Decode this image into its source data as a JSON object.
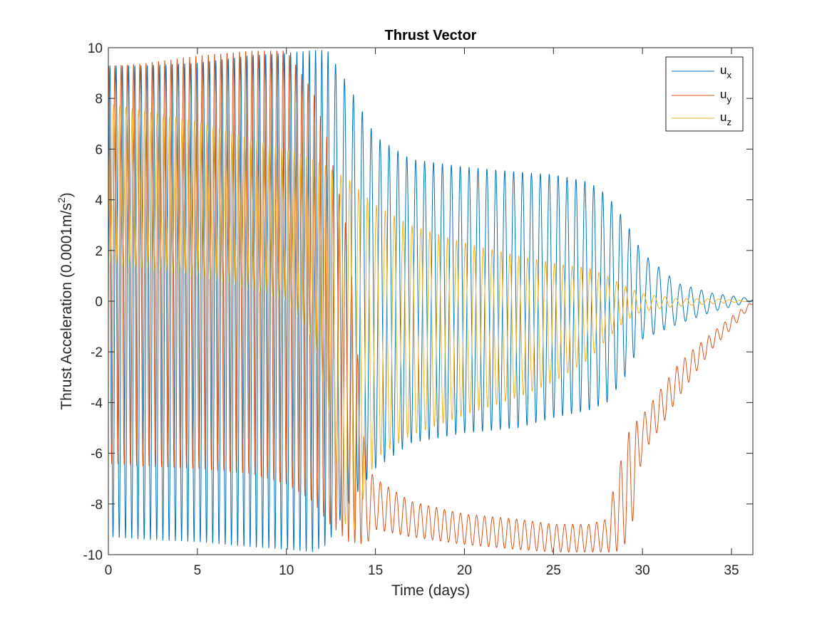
{
  "chart_data": {
    "type": "line",
    "title": "Thrust Vector",
    "xlabel": "Time (days)",
    "ylabel": "Thrust Acceleration (0.0001m/s",
    "ylabel_sup": "2",
    "ylabel_end": ")",
    "xlim": [
      0,
      36.2
    ],
    "ylim": [
      -10,
      10
    ],
    "xticks": [
      0,
      5,
      10,
      15,
      20,
      25,
      30,
      35
    ],
    "yticks": [
      -10,
      -8,
      -6,
      -4,
      -2,
      0,
      2,
      4,
      6,
      8,
      10
    ],
    "grid": false,
    "legend_position": "top-right",
    "series": [
      {
        "name": "u",
        "subscript": "x",
        "color": "#0072BD",
        "envelope": {
          "t": [
            0,
            2,
            5,
            8,
            10,
            11.5,
            12.3,
            13.5,
            15,
            17,
            20,
            23,
            25,
            27,
            28,
            29,
            30,
            32,
            34,
            36.2
          ],
          "max": [
            9.3,
            9.3,
            9.4,
            9.7,
            9.8,
            9.9,
            9.9,
            8.5,
            6.5,
            5.6,
            5.3,
            5.1,
            5.0,
            4.7,
            4.2,
            3.2,
            1.9,
            0.7,
            0.3,
            0.1
          ],
          "min": [
            -9.3,
            -9.4,
            -9.5,
            -9.7,
            -9.8,
            -9.9,
            -9.6,
            -8.0,
            -6.6,
            -5.6,
            -5.2,
            -5.0,
            -4.6,
            -4.3,
            -4.0,
            -3.0,
            -1.5,
            -0.9,
            -0.4,
            0.0
          ]
        },
        "period_days": [
          0.35,
          0.5,
          0.6
        ],
        "period_breaks": [
          12.5,
          30
        ]
      },
      {
        "name": "u",
        "subscript": "y",
        "color": "#D95319",
        "envelope": {
          "t": [
            0,
            2,
            5,
            8,
            10,
            11.5,
            12.3,
            13.5,
            14.5,
            15,
            17,
            20,
            23,
            25,
            27,
            28,
            28.5,
            29.3,
            30,
            31,
            32,
            33,
            34,
            35,
            36.2
          ],
          "max": [
            9.3,
            9.4,
            9.7,
            9.9,
            9.9,
            8.3,
            6.4,
            2.5,
            -6.5,
            -7.0,
            -7.9,
            -8.4,
            -8.6,
            -8.8,
            -8.8,
            -8.6,
            -7.0,
            -5.0,
            -4.5,
            -3.5,
            -2.5,
            -1.8,
            -1.2,
            -0.6,
            0.0
          ],
          "min": [
            -6.4,
            -6.5,
            -6.6,
            -6.8,
            -7.2,
            -7.9,
            -8.7,
            -9.5,
            -9.6,
            -9.0,
            -9.3,
            -9.6,
            -9.8,
            -9.9,
            -9.9,
            -9.9,
            -9.9,
            -9.4,
            -6.0,
            -5.0,
            -3.8,
            -2.8,
            -1.8,
            -1.1,
            -0.1
          ]
        },
        "period_days": [
          0.35,
          0.45,
          0.45
        ],
        "period_breaks": [
          14.3,
          28.3
        ]
      },
      {
        "name": "u",
        "subscript": "z",
        "color": "#EDB120",
        "envelope": {
          "t": [
            0,
            2,
            5,
            8,
            10,
            11.5,
            12.3,
            13.5,
            15,
            17,
            20,
            23,
            25,
            27,
            28,
            29,
            30,
            32,
            34,
            36.2
          ],
          "max": [
            7.8,
            7.5,
            7.1,
            6.4,
            6.0,
            5.6,
            5.3,
            4.8,
            3.8,
            3.0,
            2.3,
            1.8,
            1.5,
            1.3,
            1.0,
            0.6,
            0.3,
            0.1,
            0.1,
            0.0
          ],
          "min": [
            1.5,
            1.3,
            1.0,
            0.5,
            0.0,
            -1.5,
            -4.0,
            -9.7,
            -6.2,
            -5.3,
            -4.5,
            -3.8,
            -3.2,
            -2.3,
            -1.5,
            -0.8,
            -0.4,
            -0.2,
            -0.1,
            0.0
          ]
        },
        "period_days": [
          0.35,
          0.5,
          0.6
        ],
        "period_breaks": [
          12.5,
          30
        ]
      }
    ]
  }
}
